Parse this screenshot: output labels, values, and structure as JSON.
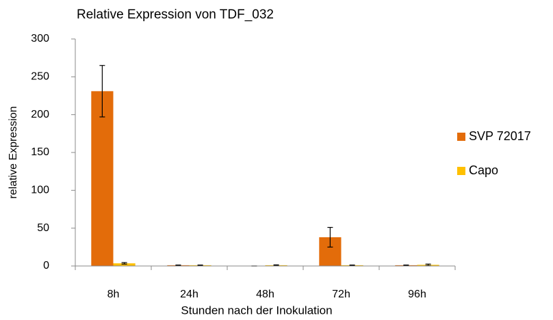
{
  "chart_data": {
    "type": "bar",
    "title": "Relative Expression von TDF_032",
    "xlabel": "Stunden nach der Inokulation",
    "ylabel": "relative Expression",
    "categories": [
      "8h",
      "24h",
      "48h",
      "72h",
      "96h"
    ],
    "series": [
      {
        "name": "SVP 72017",
        "color": "#e36c0a",
        "values": [
          231,
          1,
          0,
          38,
          1
        ],
        "errors": [
          34,
          0.3,
          0,
          13,
          0.3
        ]
      },
      {
        "name": "Capo",
        "color": "#ffc000",
        "values": [
          3.5,
          1,
          1,
          1,
          1.5
        ],
        "errors": [
          1,
          0.3,
          0.5,
          0.3,
          1
        ]
      }
    ],
    "ylim": [
      0,
      300
    ],
    "yticks": [
      0,
      50,
      100,
      150,
      200,
      250,
      300
    ],
    "grid": false,
    "legend": "right"
  }
}
